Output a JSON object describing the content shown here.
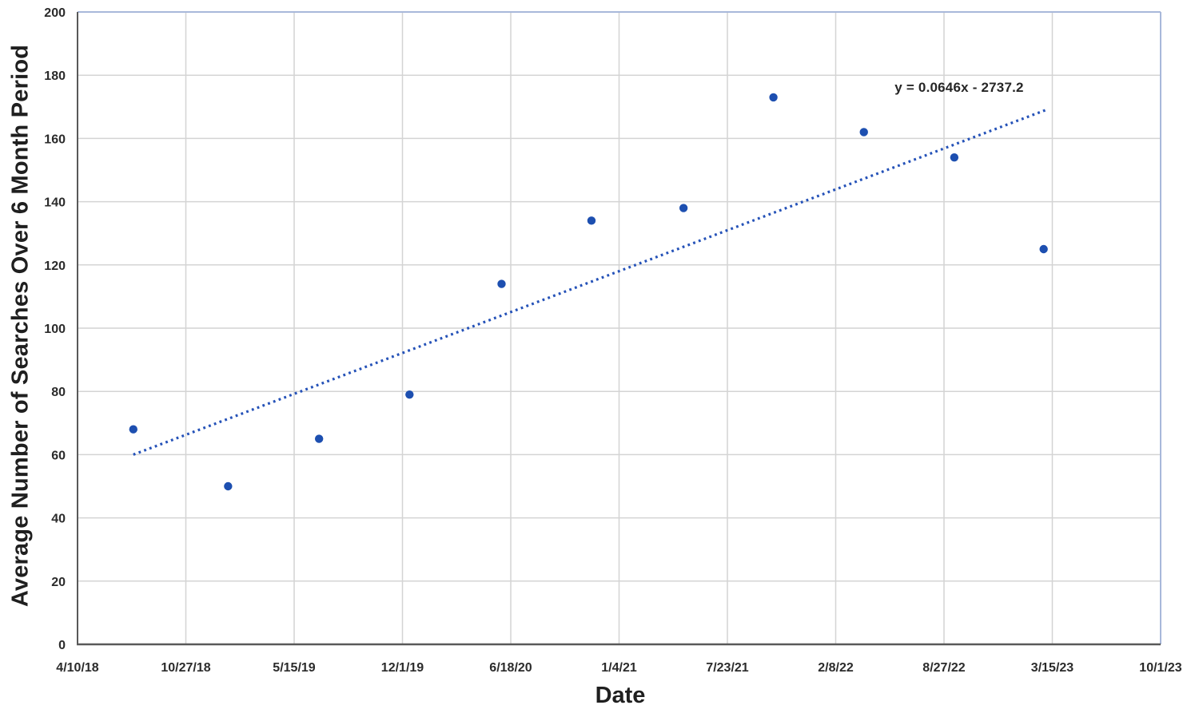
{
  "chart_data": {
    "type": "scatter",
    "title": "",
    "xlabel": "Date",
    "ylabel": "Average Number of Searches Over 6 Month Period",
    "grid": true,
    "legend_position": "none",
    "x_axis": {
      "min_date": "2018-04-10",
      "max_date": "2023-10-01",
      "tick_labels": [
        "4/10/18",
        "10/27/18",
        "5/15/19",
        "12/1/19",
        "6/18/20",
        "1/4/21",
        "7/23/21",
        "2/8/22",
        "8/27/22",
        "3/15/23",
        "10/1/23"
      ]
    },
    "y_axis": {
      "min": 0,
      "max": 200,
      "tick_step": 20,
      "tick_labels": [
        "0",
        "20",
        "40",
        "60",
        "80",
        "100",
        "120",
        "140",
        "160",
        "180",
        "200"
      ]
    },
    "points": [
      {
        "date": "2018-07-22",
        "value": 68
      },
      {
        "date": "2019-01-13",
        "value": 50
      },
      {
        "date": "2019-06-30",
        "value": 65
      },
      {
        "date": "2019-12-14",
        "value": 79
      },
      {
        "date": "2020-06-01",
        "value": 114
      },
      {
        "date": "2020-11-14",
        "value": 134
      },
      {
        "date": "2021-05-03",
        "value": 138
      },
      {
        "date": "2021-10-16",
        "value": 173
      },
      {
        "date": "2022-04-01",
        "value": 162
      },
      {
        "date": "2022-09-15",
        "value": 154
      },
      {
        "date": "2023-02-27",
        "value": 125
      }
    ],
    "trendline": {
      "equation": "y = 0.0646x - 2737.2",
      "style": "dotted",
      "start": {
        "date": "2018-07-22",
        "value": 60
      },
      "end": {
        "date": "2023-03-03",
        "value": 169
      }
    },
    "colors": {
      "marker": "#1d4fb0",
      "trendline": "#2552b8",
      "gridline": "#d4d4d4",
      "axis_line": "#595959",
      "plot_border": "#a8b8da",
      "tick_text": "#2b2b2b",
      "title_text": "#1f1f1f"
    }
  }
}
